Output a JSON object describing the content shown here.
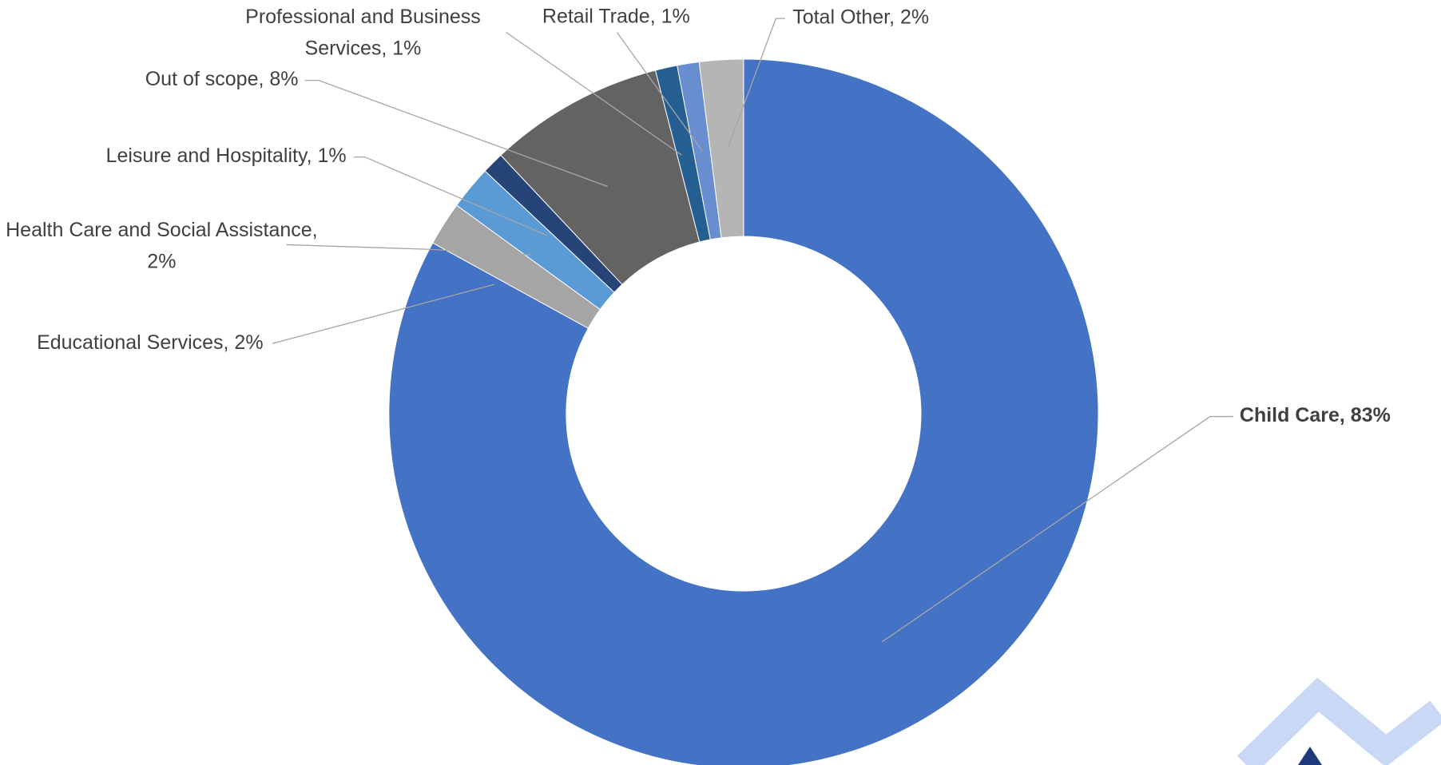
{
  "chart_data": {
    "type": "donut",
    "categories": [
      "Child Care",
      "Educational Services",
      "Health Care and Social Assistance",
      "Leisure and Hospitality",
      "Out of scope",
      "Professional and Business Services",
      "Retail Trade",
      "Total Other"
    ],
    "values": [
      83,
      2,
      2,
      1,
      8,
      1,
      1,
      2
    ],
    "data_labels": [
      "Child Care, 83%",
      "Educational Services, 2%",
      "Health Care and Social Assistance, 2%",
      "Leisure and Hospitality, 1%",
      "Out of scope, 8%",
      "Professional and Business Services, 1%",
      "Retail Trade, 1%",
      "Total Other, 2%"
    ],
    "colors": [
      "#4472c4",
      "#a5a5a5",
      "#5b9bd5",
      "#264478",
      "#636363",
      "#255e91",
      "#698ed0",
      "#b5b5b5"
    ]
  }
}
